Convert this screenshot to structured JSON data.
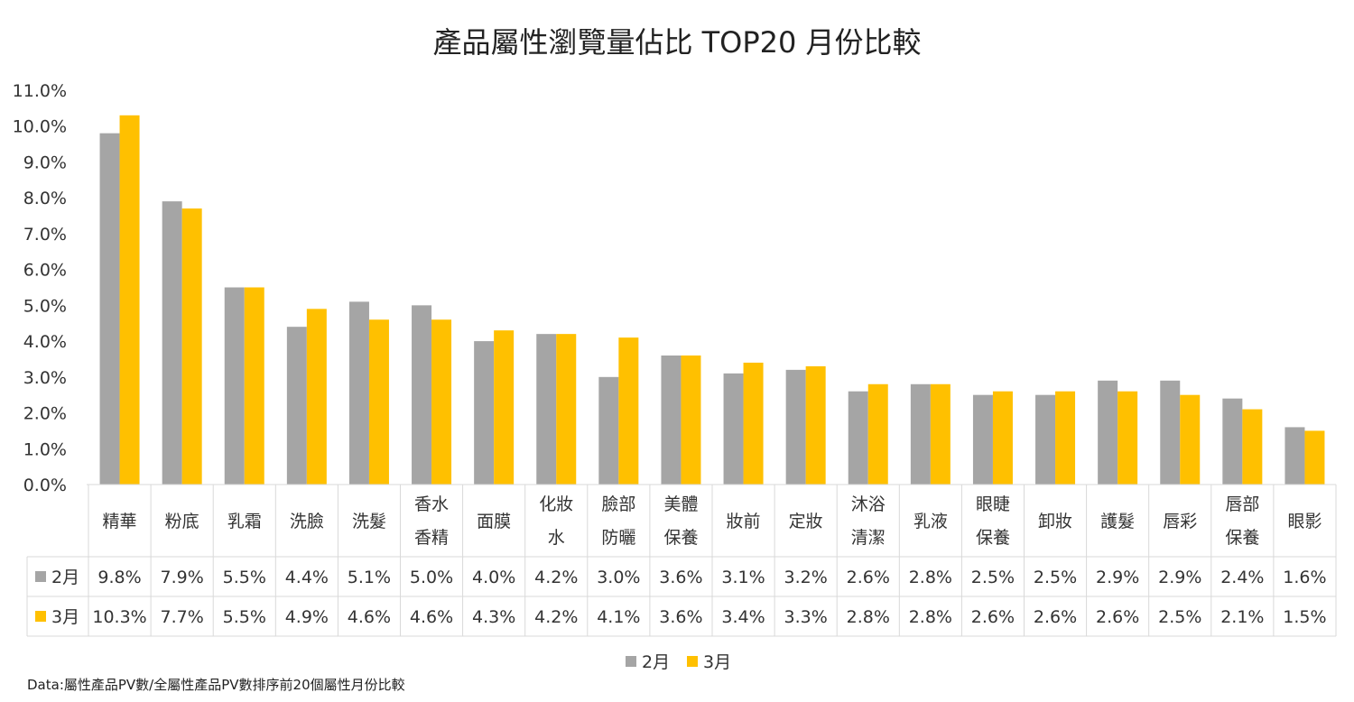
{
  "chart_data": {
    "type": "bar",
    "title": "產品屬性瀏覽量佔比 TOP20 月份比較",
    "categories": [
      [
        "精華"
      ],
      [
        "粉底"
      ],
      [
        "乳霜"
      ],
      [
        "洗臉"
      ],
      [
        "洗髮"
      ],
      [
        "香水",
        "香精"
      ],
      [
        "面膜"
      ],
      [
        "化妝",
        "水"
      ],
      [
        "臉部",
        "防曬"
      ],
      [
        "美體",
        "保養"
      ],
      [
        "妝前"
      ],
      [
        "定妝"
      ],
      [
        "沐浴",
        "清潔"
      ],
      [
        "乳液"
      ],
      [
        "眼睫",
        "保養"
      ],
      [
        "卸妝"
      ],
      [
        "護髮"
      ],
      [
        "唇彩"
      ],
      [
        "唇部",
        "保養"
      ],
      [
        "眼影"
      ]
    ],
    "series": [
      {
        "name": "2月",
        "color": "#A5A5A5",
        "values": [
          9.8,
          7.9,
          5.5,
          4.4,
          5.1,
          5.0,
          4.0,
          4.2,
          3.0,
          3.6,
          3.1,
          3.2,
          2.6,
          2.8,
          2.5,
          2.5,
          2.9,
          2.9,
          2.4,
          1.6
        ],
        "labels": [
          "9.8%",
          "7.9%",
          "5.5%",
          "4.4%",
          "5.1%",
          "5.0%",
          "4.0%",
          "4.2%",
          "3.0%",
          "3.6%",
          "3.1%",
          "3.2%",
          "2.6%",
          "2.8%",
          "2.5%",
          "2.5%",
          "2.9%",
          "2.9%",
          "2.4%",
          "1.6%"
        ]
      },
      {
        "name": "3月",
        "color": "#FFC000",
        "values": [
          10.3,
          7.7,
          5.5,
          4.9,
          4.6,
          4.6,
          4.3,
          4.2,
          4.1,
          3.6,
          3.4,
          3.3,
          2.8,
          2.8,
          2.6,
          2.6,
          2.6,
          2.5,
          2.1,
          1.5
        ],
        "labels": [
          "10.3%",
          "7.7%",
          "5.5%",
          "4.9%",
          "4.6%",
          "4.6%",
          "4.3%",
          "4.2%",
          "4.1%",
          "3.6%",
          "3.4%",
          "3.3%",
          "2.8%",
          "2.8%",
          "2.6%",
          "2.6%",
          "2.6%",
          "2.5%",
          "2.1%",
          "1.5%"
        ]
      }
    ],
    "yticks": [
      "0.0%",
      "1.0%",
      "2.0%",
      "3.0%",
      "4.0%",
      "5.0%",
      "6.0%",
      "7.0%",
      "8.0%",
      "9.0%",
      "10.0%",
      "11.0%"
    ],
    "ylim": [
      0,
      11
    ],
    "grid": false,
    "data_table": true,
    "legend": {
      "position": "bottom",
      "entries": [
        "2月",
        "3月"
      ]
    },
    "footnote": "Data:屬性產品PV數/全屬性產品PV數排序前20個屬性月份比較"
  }
}
